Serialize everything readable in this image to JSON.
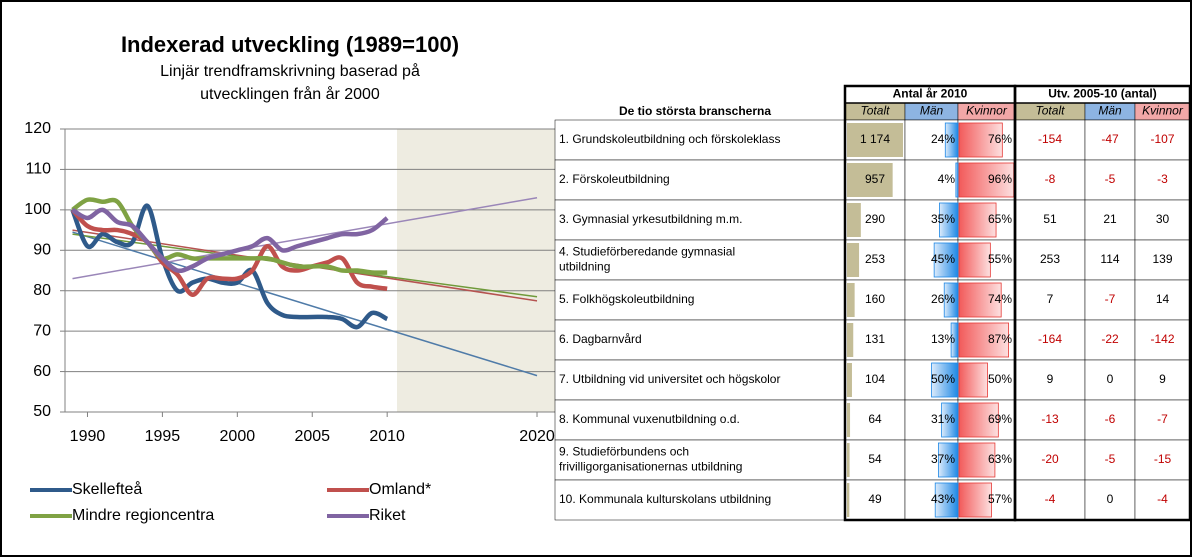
{
  "chart_data": {
    "type": "line",
    "title": "Indexerad utveckling (1989=100)",
    "subtitle": [
      "Linjär trendframskrivning baserad på",
      "utvecklingen från år 2000"
    ],
    "x": [
      1989,
      1990,
      1991,
      1992,
      1993,
      1994,
      1995,
      1996,
      1997,
      1998,
      1999,
      2000,
      2001,
      2002,
      2003,
      2004,
      2005,
      2006,
      2007,
      2008,
      2009,
      2010
    ],
    "xlim": [
      1988.5,
      2021.2
    ],
    "xticks": [
      1990,
      1995,
      2000,
      2005,
      2010,
      2020
    ],
    "ylim": [
      50,
      120
    ],
    "yticks": [
      50,
      60,
      70,
      80,
      90,
      100,
      110,
      120
    ],
    "grid": true,
    "trend_x": [
      1989,
      2020
    ],
    "series": [
      {
        "name": "Skellefteå",
        "color": "#2f5a8a",
        "trend_color": "#4f7ba8",
        "values": [
          100,
          91,
          94,
          92,
          92,
          101,
          88,
          80,
          82,
          83,
          82,
          82,
          85,
          77,
          74,
          73.5,
          73.5,
          73.5,
          73,
          71,
          74.5,
          73
        ],
        "trend": [
          94.5,
          59
        ]
      },
      {
        "name": "Omland*",
        "color": "#c0504d",
        "trend_color": "#b55350",
        "values": [
          100,
          96,
          95,
          95,
          94,
          92,
          87,
          84,
          79,
          83,
          83,
          83,
          85,
          91,
          86,
          85,
          86,
          87,
          88,
          82,
          81,
          80.5
        ],
        "trend": [
          95,
          77.5
        ]
      },
      {
        "name": "Mindre regioncentra",
        "color": "#7fa244",
        "trend_color": "#6f9a3a",
        "values": [
          100,
          102.5,
          102,
          102,
          96,
          92,
          88,
          89,
          88,
          88,
          88,
          88,
          88,
          88,
          87,
          86,
          86,
          86,
          85,
          85,
          84.5,
          84.5
        ],
        "trend": [
          94,
          78.5
        ]
      },
      {
        "name": "Riket",
        "color": "#8064a2",
        "trend_color": "#9a86b8",
        "values": [
          100,
          98,
          100,
          97,
          96,
          92,
          88,
          85,
          86,
          88,
          89,
          90,
          91,
          93,
          90,
          91,
          92,
          93,
          94,
          94,
          95,
          98
        ],
        "trend": [
          83,
          103
        ]
      }
    ]
  },
  "table": {
    "title": "De tio största branscherna",
    "groups": [
      "Antal år 2010",
      "Utv. 2005-10 (antal)"
    ],
    "columns": [
      "Totalt",
      "Män",
      "Kvinnor",
      "Totalt",
      "Män",
      "Kvinnor"
    ],
    "rows": [
      {
        "name": [
          "1. Grundskoleutbildning och förskoleklass"
        ],
        "total": {
          "value": 1174,
          "label": "1 174"
        },
        "men": {
          "value": 24,
          "label": "24%"
        },
        "women": {
          "value": 76,
          "label": "76%"
        },
        "change_total": -154,
        "change_men": -47,
        "change_women": -107
      },
      {
        "name": [
          "2. Förskoleutbildning"
        ],
        "total": 957,
        "men": {
          "value": 4,
          "label": "4%"
        },
        "women": {
          "value": 96,
          "label": "96%"
        },
        "change_total": -8,
        "change_men": -5,
        "change_women": -3
      },
      {
        "name": [
          "3. Gymnasial yrkesutbildning m.m."
        ],
        "total": 290,
        "men": {
          "value": 35,
          "label": "35%"
        },
        "women": {
          "value": 65,
          "label": "65%"
        },
        "change_total": 51,
        "change_men": 21,
        "change_women": 30
      },
      {
        "name": [
          "4. Studieförberedande gymnasial",
          "utbildning"
        ],
        "total": 253,
        "men": {
          "value": 45,
          "label": "45%"
        },
        "women": {
          "value": 55,
          "label": "55%"
        },
        "change_total": 253,
        "change_men": 114,
        "change_women": 139
      },
      {
        "name": [
          "5. Folkhögskoleutbildning"
        ],
        "total": 160,
        "men": {
          "value": 26,
          "label": "26%"
        },
        "women": {
          "value": 74,
          "label": "74%"
        },
        "change_total": 7,
        "change_men": -7,
        "change_women": 14
      },
      {
        "name": [
          "6. Dagbarnvård"
        ],
        "total": 131,
        "men": {
          "value": 13,
          "label": "13%"
        },
        "women": {
          "value": 87,
          "label": "87%"
        },
        "change_total": -164,
        "change_men": -22,
        "change_women": -142
      },
      {
        "name": [
          "7. Utbildning vid universitet och högskolor"
        ],
        "total": 104,
        "men": {
          "value": 50,
          "label": "50%"
        },
        "women": {
          "value": 50,
          "label": "50%"
        },
        "change_total": 9,
        "change_men": 0,
        "change_women": 9
      },
      {
        "name": [
          "8. Kommunal vuxenutbildning o.d."
        ],
        "total": 64,
        "men": {
          "value": 31,
          "label": "31%"
        },
        "women": {
          "value": 69,
          "label": "69%"
        },
        "change_total": -13,
        "change_men": -6,
        "change_women": -7
      },
      {
        "name": [
          "9. Studieförbundens och",
          "frivilligorganisationernas utbildning"
        ],
        "total": 54,
        "men": {
          "value": 37,
          "label": "37%"
        },
        "women": {
          "value": 63,
          "label": "63%"
        },
        "change_total": -20,
        "change_men": -5,
        "change_women": -15
      },
      {
        "name": [
          "10. Kommunala kulturskolans utbildning"
        ],
        "total": 49,
        "men": {
          "value": 43,
          "label": "43%"
        },
        "women": {
          "value": 57,
          "label": "57%"
        },
        "change_total": -4,
        "change_men": 0,
        "change_women": -4
      }
    ]
  }
}
